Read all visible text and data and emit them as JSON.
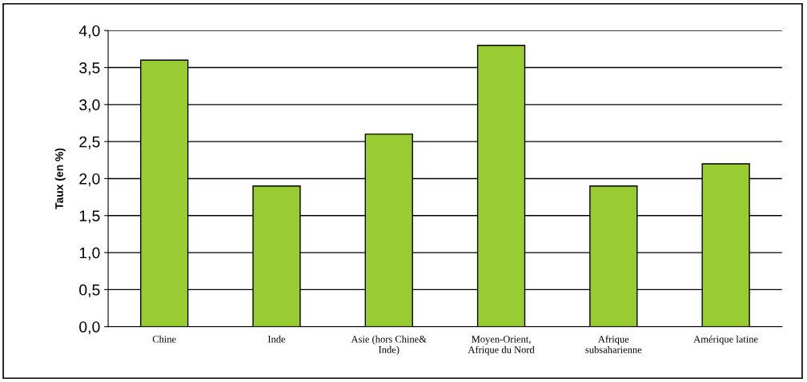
{
  "chart_data": {
    "type": "bar",
    "ylabel": "Taux (en %)",
    "categories": [
      "Chine",
      "Inde",
      "Asie (hors Chine&\nInde)",
      "Moyen-Orient,\nAfrique du Nord",
      "Afrique\nsubsaharienne",
      "Amérique latine"
    ],
    "values": [
      3.6,
      1.9,
      2.6,
      3.8,
      1.9,
      2.2
    ],
    "color": "#99cc33",
    "ylim": [
      0,
      4
    ],
    "yticks": [
      {
        "value": 0,
        "label": "0,0"
      },
      {
        "value": 0.5,
        "label": "0,5"
      },
      {
        "value": 1,
        "label": "1,0"
      },
      {
        "value": 1.5,
        "label": "1,5"
      },
      {
        "value": 2,
        "label": "2,0"
      },
      {
        "value": 2.5,
        "label": "2,5"
      },
      {
        "value": 3,
        "label": "3,0"
      },
      {
        "value": 3.5,
        "label": "3,5"
      },
      {
        "value": 4,
        "label": "4,0"
      }
    ],
    "grid": "y"
  }
}
